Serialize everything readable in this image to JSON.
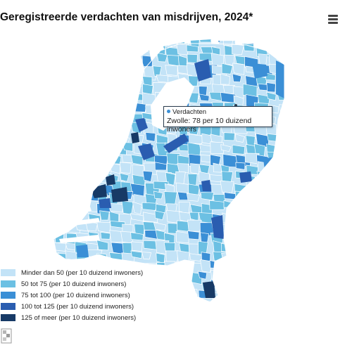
{
  "title": "Geregistreerde verdachten van misdrijven, 2024*",
  "menu_icon": "hamburger-menu-icon",
  "colors": {
    "water_land_border": "#ffffff",
    "class_1": "#c3e3f7",
    "class_2": "#6cc0e3",
    "class_3": "#3b8fd6",
    "class_4": "#2a5db0",
    "class_5": "#173a66",
    "tooltip_border": "#2c3e50",
    "tooltip_dot": "#3b8fd6"
  },
  "tooltip": {
    "series": "Verdachten",
    "text": "Zwolle: 78 per 10 duizend inwoners"
  },
  "legend": [
    {
      "label": "Minder dan 50 (per 10 duizend inwoners)",
      "color": "#c3e3f7"
    },
    {
      "label": "50 tot 75 (per 10 duizend inwoners)",
      "color": "#6cc0e3"
    },
    {
      "label": "75 tot 100 (per 10 duizend inwoners)",
      "color": "#3b8fd6"
    },
    {
      "label": "100 tot 125 (per 10 duizend inwoners)",
      "color": "#2a5db0"
    },
    {
      "label": "125 of meer (per 10 duizend inwoners)",
      "color": "#173a66"
    }
  ],
  "logo_icon": "cbs-logo-icon"
}
